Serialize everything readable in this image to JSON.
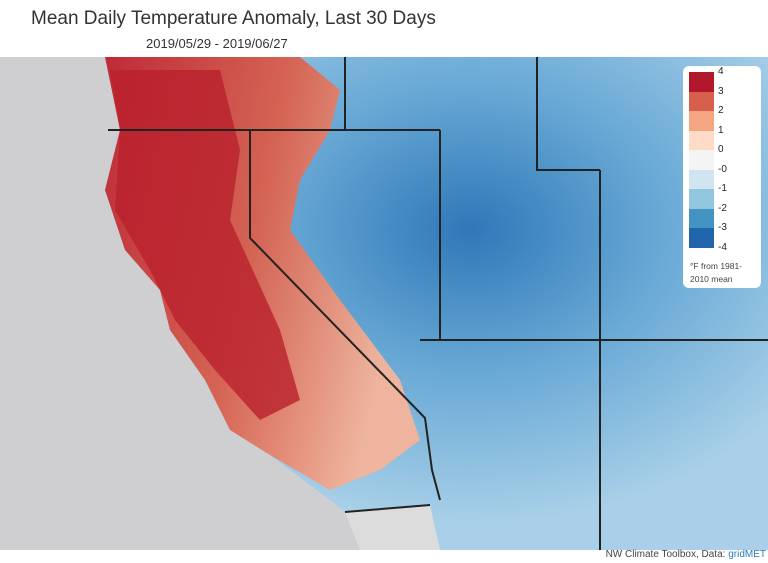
{
  "title": "Mean Daily Temperature Anomaly, Last 30 Days",
  "subtitle": "2019/05/29 - 2019/06/27",
  "legend": {
    "ticks": [
      "4",
      "3",
      "2",
      "1",
      "0",
      "-0",
      "-1",
      "-2",
      "-3",
      "-4"
    ],
    "colors": [
      "#b2182b",
      "#d6604d",
      "#f4a582",
      "#fddbc7",
      "#f7f7f7",
      "#d1e5f0",
      "#92c5de",
      "#4393c3",
      "#2166ac"
    ],
    "unit": "°F from 1981-2010 mean"
  },
  "credit": {
    "text": "NW Climate Toolbox, Data: ",
    "link": "gridMET"
  }
}
